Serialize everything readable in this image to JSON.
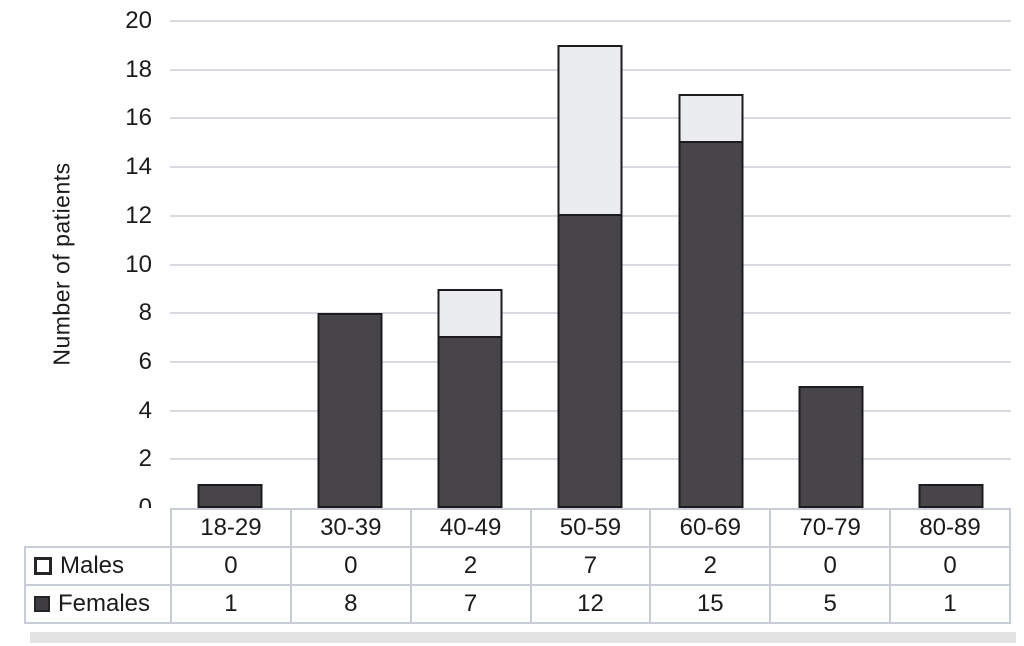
{
  "chart_data": {
    "type": "bar",
    "stacked": true,
    "title": "",
    "xlabel": "",
    "ylabel": "Number of patients",
    "ylim": [
      0,
      20
    ],
    "ytick_step": 2,
    "grid": true,
    "legend_position": "table-left",
    "categories": [
      "18-29",
      "30-39",
      "40-49",
      "50-59",
      "60-69",
      "70-79",
      "80-89"
    ],
    "series": [
      {
        "name": "Males",
        "values": [
          0,
          0,
          2,
          7,
          2,
          0,
          0
        ],
        "color": "#ebecf0",
        "marker": "outlined-square"
      },
      {
        "name": "Females",
        "values": [
          1,
          8,
          7,
          12,
          15,
          5,
          1
        ],
        "color": "#47454a",
        "marker": "filled-square"
      }
    ]
  },
  "colors": {
    "bar_border": "#1c1c1e",
    "grid_line": "#d8dbe1",
    "table_border": "#c7ccd6",
    "text": "#1b1b1b"
  }
}
